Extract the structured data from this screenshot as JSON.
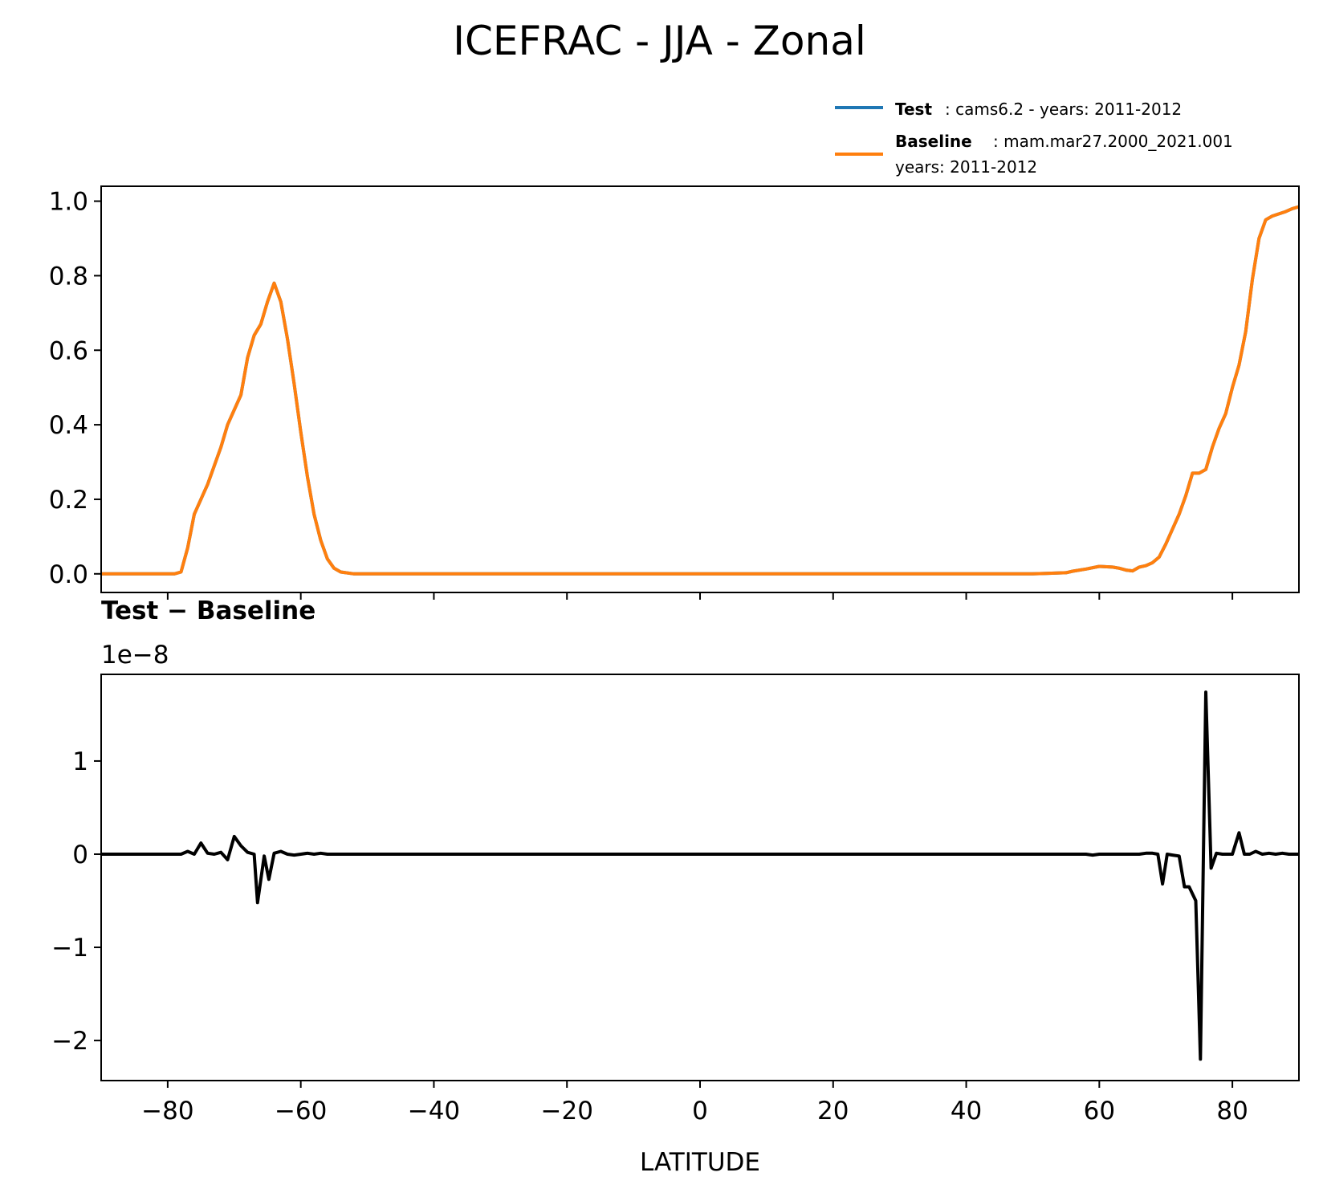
{
  "title": "ICEFRAC - JJA - Zonal",
  "legend": {
    "test_key": "Test",
    "test_text": ": cams6.2 - years: 2011-2012",
    "baseline_key": "Baseline",
    "baseline_text": ": mam.mar27.2000_2021.001",
    "baseline_years": "years: 2011-2012"
  },
  "colors": {
    "test": "#1f77b4",
    "baseline": "#ff7f0e",
    "diff": "#000000"
  },
  "chart_data": [
    {
      "type": "line",
      "panel": "top",
      "xlim": [
        -90,
        90
      ],
      "ylim": [
        -0.05,
        1.04
      ],
      "yticks": [
        0.0,
        0.2,
        0.4,
        0.6,
        0.8,
        1.0
      ],
      "ytick_labels": [
        "0.0",
        "0.2",
        "0.4",
        "0.6",
        "0.8",
        "1.0"
      ],
      "xticks": [
        -80,
        -60,
        -40,
        -20,
        0,
        20,
        40,
        60,
        80
      ],
      "series": [
        {
          "name": "Test",
          "color": "#1f77b4",
          "x": [
            -90,
            -80,
            -79,
            -78,
            -77,
            -76,
            -75,
            -74,
            -73,
            -72,
            -71,
            -70,
            -69,
            -68,
            -67,
            -66,
            -65,
            -64,
            -63,
            -62,
            -61,
            -60,
            -59,
            -58,
            -57,
            -56,
            -55,
            -54,
            -52,
            -50,
            0,
            50,
            52,
            55,
            56,
            58,
            60,
            62,
            63,
            64,
            65,
            66,
            67,
            68,
            69,
            70,
            71,
            72,
            73,
            74,
            75,
            76,
            77,
            78,
            79,
            80,
            81,
            82,
            83,
            84,
            85,
            86,
            87,
            88,
            89,
            90
          ],
          "y": [
            0.0,
            0.0,
            0.0,
            0.005,
            0.07,
            0.16,
            0.2,
            0.24,
            0.29,
            0.34,
            0.4,
            0.44,
            0.48,
            0.58,
            0.64,
            0.67,
            0.73,
            0.78,
            0.73,
            0.63,
            0.51,
            0.38,
            0.26,
            0.16,
            0.09,
            0.04,
            0.015,
            0.005,
            0.0,
            0.0,
            0.0,
            0.0,
            0.001,
            0.003,
            0.007,
            0.013,
            0.02,
            0.018,
            0.015,
            0.01,
            0.008,
            0.018,
            0.022,
            0.03,
            0.045,
            0.08,
            0.12,
            0.16,
            0.21,
            0.27,
            0.27,
            0.28,
            0.34,
            0.39,
            0.43,
            0.5,
            0.56,
            0.65,
            0.79,
            0.9,
            0.95,
            0.96,
            0.966,
            0.972,
            0.98,
            0.985
          ]
        },
        {
          "name": "Baseline",
          "color": "#ff7f0e",
          "x": [
            -90,
            -80,
            -79,
            -78,
            -77,
            -76,
            -75,
            -74,
            -73,
            -72,
            -71,
            -70,
            -69,
            -68,
            -67,
            -66,
            -65,
            -64,
            -63,
            -62,
            -61,
            -60,
            -59,
            -58,
            -57,
            -56,
            -55,
            -54,
            -52,
            -50,
            0,
            50,
            52,
            55,
            56,
            58,
            60,
            62,
            63,
            64,
            65,
            66,
            67,
            68,
            69,
            70,
            71,
            72,
            73,
            74,
            75,
            76,
            77,
            78,
            79,
            80,
            81,
            82,
            83,
            84,
            85,
            86,
            87,
            88,
            89,
            90
          ],
          "y": [
            0.0,
            0.0,
            0.0,
            0.005,
            0.07,
            0.16,
            0.2,
            0.24,
            0.29,
            0.34,
            0.4,
            0.44,
            0.48,
            0.58,
            0.64,
            0.67,
            0.73,
            0.78,
            0.73,
            0.63,
            0.51,
            0.38,
            0.26,
            0.16,
            0.09,
            0.04,
            0.015,
            0.005,
            0.0,
            0.0,
            0.0,
            0.0,
            0.001,
            0.003,
            0.007,
            0.013,
            0.02,
            0.018,
            0.015,
            0.01,
            0.008,
            0.018,
            0.022,
            0.03,
            0.045,
            0.08,
            0.12,
            0.16,
            0.21,
            0.27,
            0.27,
            0.28,
            0.34,
            0.39,
            0.43,
            0.5,
            0.56,
            0.65,
            0.79,
            0.9,
            0.95,
            0.96,
            0.966,
            0.972,
            0.98,
            0.985
          ]
        }
      ]
    },
    {
      "type": "line",
      "panel": "bottom",
      "title": "Test − Baseline",
      "offset_text": "1e−8",
      "xlabel": "LATITUDE",
      "xlim": [
        -90,
        90
      ],
      "ylim": [
        -2.43,
        1.93
      ],
      "yticks": [
        -2,
        -1,
        0,
        1
      ],
      "ytick_labels": [
        "−2",
        "−1",
        "0",
        "1"
      ],
      "xticks": [
        -80,
        -60,
        -40,
        -20,
        0,
        20,
        40,
        60,
        80
      ],
      "xtick_labels": [
        "−80",
        "−60",
        "−40",
        "−20",
        "0",
        "20",
        "40",
        "60",
        "80"
      ],
      "series": [
        {
          "name": "Test − Baseline",
          "color": "#000000",
          "x": [
            -90,
            -78,
            -77,
            -76,
            -75,
            -74,
            -73,
            -72,
            -71,
            -70,
            -69,
            -68,
            -67,
            -66.5,
            -65.5,
            -64.8,
            -64,
            -63,
            -62,
            -61,
            -60,
            -59,
            -58,
            -57,
            -56,
            -55,
            -50,
            0,
            50,
            55,
            58,
            59,
            60,
            62,
            65,
            66,
            67,
            68,
            68.8,
            69.5,
            70.2,
            71,
            72,
            72.8,
            73.5,
            74.5,
            75.2,
            76,
            76.8,
            77.6,
            78.5,
            79.3,
            80,
            81,
            81.8,
            82.6,
            83.5,
            84.5,
            85.5,
            86.5,
            87.5,
            88.5,
            90
          ],
          "y": [
            0,
            0,
            0.03,
            0.0,
            0.12,
            0.01,
            0.0,
            0.02,
            -0.06,
            0.19,
            0.09,
            0.02,
            0.0,
            -0.52,
            -0.02,
            -0.27,
            0.01,
            0.03,
            0.0,
            -0.01,
            0.0,
            0.01,
            0.0,
            0.01,
            0.0,
            0.0,
            0.0,
            0.0,
            0.0,
            0.0,
            0.0,
            -0.01,
            0.0,
            0.0,
            0.0,
            0.0,
            0.01,
            0.01,
            0.0,
            -0.32,
            0.0,
            -0.01,
            -0.02,
            -0.35,
            -0.35,
            -0.5,
            -2.2,
            1.74,
            -0.15,
            0.01,
            0.0,
            0.0,
            0.0,
            0.23,
            0.0,
            0.0,
            0.03,
            0.0,
            0.01,
            0.0,
            0.01,
            0.0,
            0.0
          ]
        }
      ]
    }
  ]
}
